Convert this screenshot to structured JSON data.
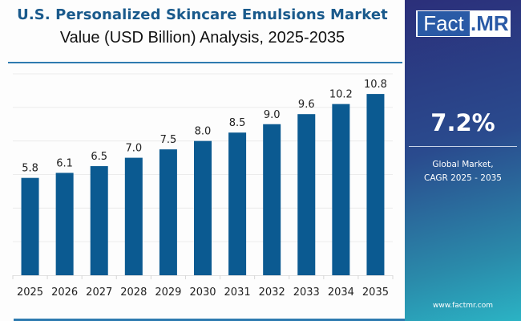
{
  "header": {
    "title": "U.S. Personalized Skincare Emulsions Market",
    "subtitle": "Value (USD Billion) Analysis, 2025-2035"
  },
  "sidebar": {
    "logo_left": "Fact",
    "logo_right": ".MR",
    "cagr_value": "7.2%",
    "cagr_label_line1": "Global Market,",
    "cagr_label_line2": "CAGR 2025 - 2035",
    "url": "www.factmr.com"
  },
  "colors": {
    "bar": "#0b5a91",
    "title": "#1a5a8c",
    "accent_rule": "#2e7bb0",
    "gridline": "#ececec"
  },
  "chart_data": {
    "type": "bar",
    "title": "U.S. Personalized Skincare Emulsions Market",
    "subtitle": "Value (USD Billion) Analysis, 2025-2035",
    "xlabel": "",
    "ylabel": "",
    "categories": [
      "2025",
      "2026",
      "2027",
      "2028",
      "2029",
      "2030",
      "2031",
      "2032",
      "2033",
      "2034",
      "2035"
    ],
    "values": [
      5.8,
      6.1,
      6.5,
      7.0,
      7.5,
      8.0,
      8.5,
      9.0,
      9.6,
      10.2,
      10.8
    ],
    "data_labels": [
      "5.8",
      "6.1",
      "6.5",
      "7.0",
      "7.5",
      "8.0",
      "8.5",
      "9.0",
      "9.6",
      "10.2",
      "10.8"
    ],
    "ylim": [
      0,
      12
    ],
    "grid": true,
    "gridline_step": 2,
    "y_axis_labels_shown": false,
    "legend": "none"
  }
}
